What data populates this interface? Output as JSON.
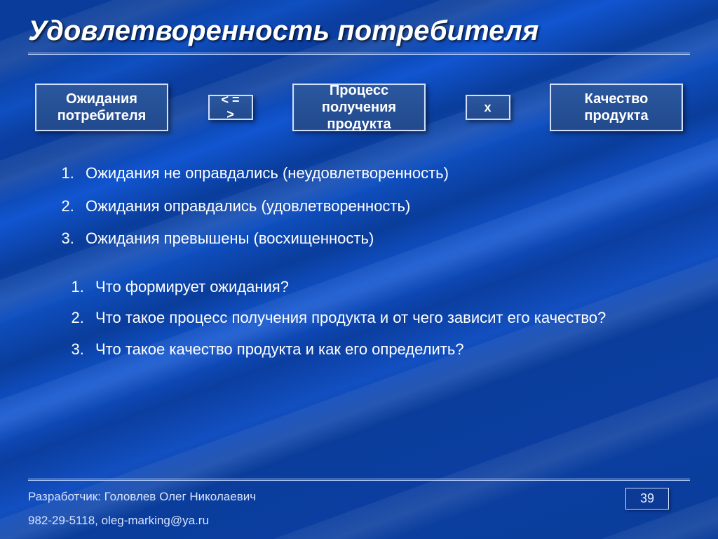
{
  "title": "Удовлетворенность потребителя",
  "boxes": {
    "b1": "Ожидания потребителя",
    "op1": "< = >",
    "b2": "Процесс получения продукта",
    "op2": "x",
    "b3": "Качество продукта"
  },
  "list1": {
    "i1": "Ожидания не оправдались (неудовлетворенность)",
    "i2": "Ожидания оправдались (удовлетворенность)",
    "i3": "Ожидания превышены (восхищенность)"
  },
  "list2": {
    "i1": "Что формирует ожидания?",
    "i2": "Что такое процесс получения продукта и от чего зависит его качество?",
    "i3": "Что такое качество продукта и как его определить?"
  },
  "footer": {
    "line1": "Разработчик: Головлев Олег Николаевич",
    "line2": "982-29-5118,  oleg-marking@ya.ru"
  },
  "page_number": "39",
  "colors": {
    "bg_base": "#0a3d9b",
    "box_bg": "#265099",
    "box_border": "#d0dfff",
    "rule": "#b9d1ff",
    "text": "#ffffff"
  }
}
